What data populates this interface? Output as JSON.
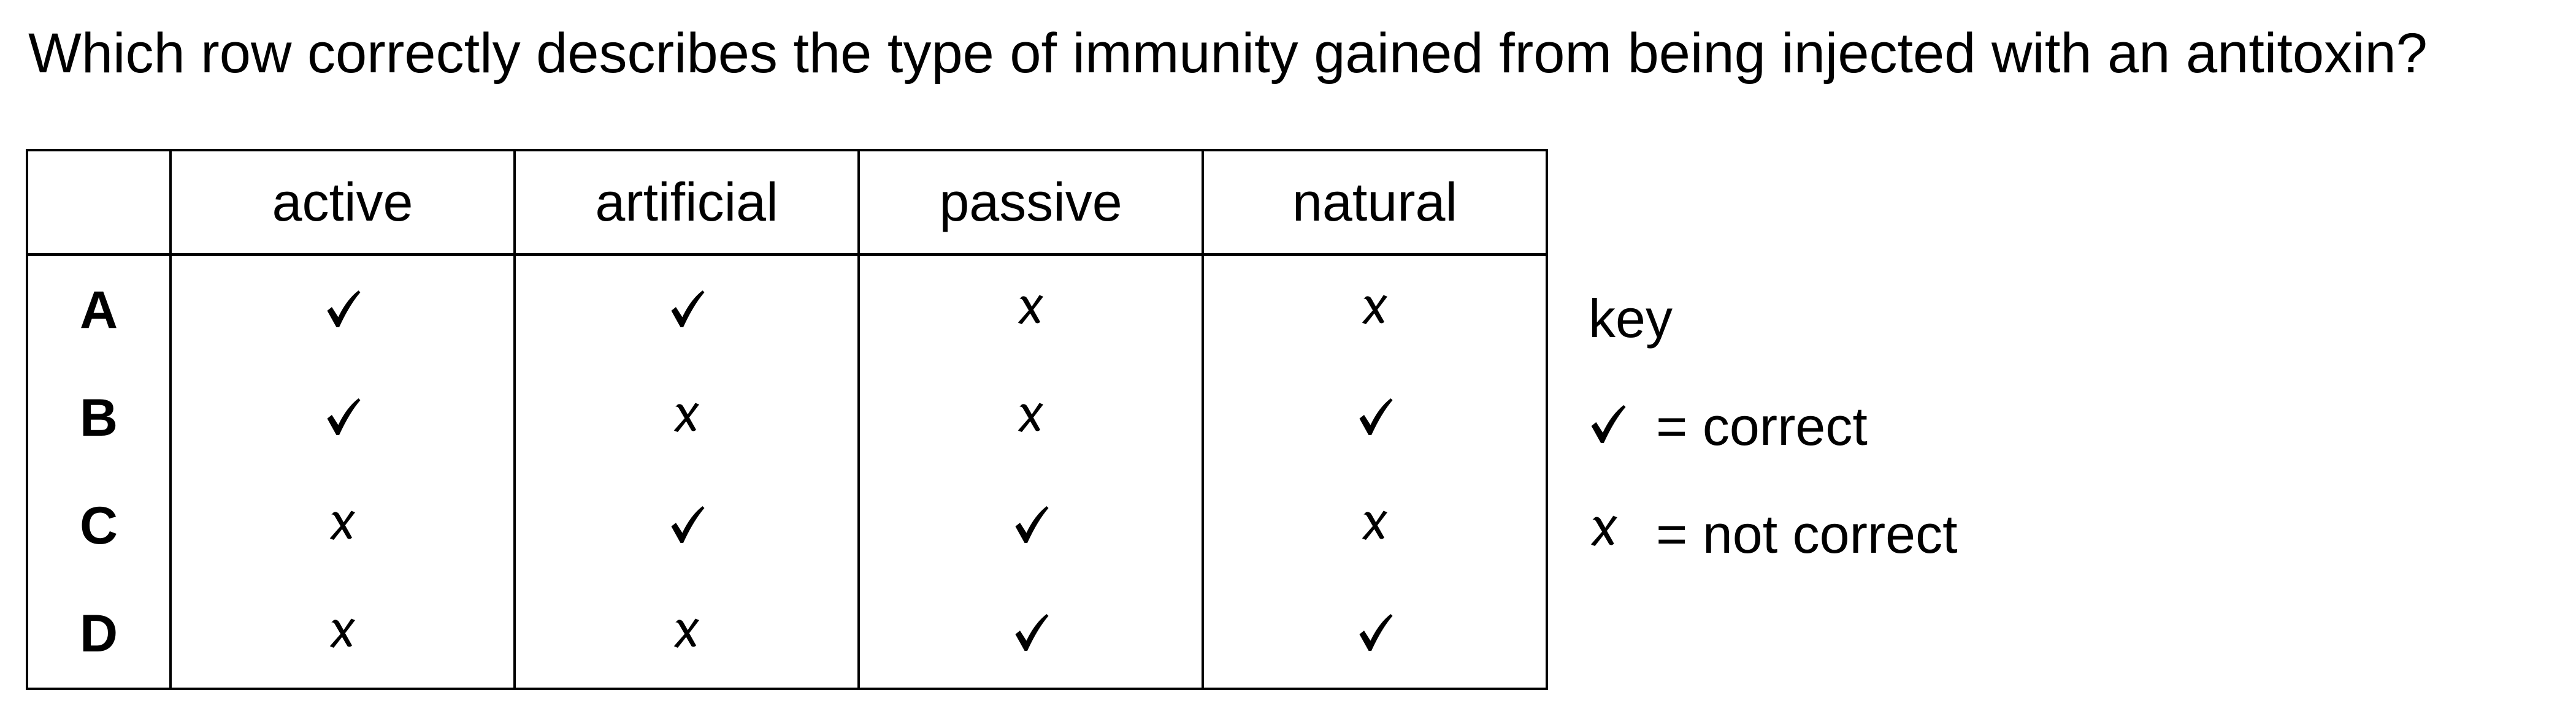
{
  "question": {
    "text": "Which row correctly describes the type of immunity gained from being injected with an antitoxin?"
  },
  "table": {
    "headers": [
      "",
      "active",
      "artificial",
      "passive",
      "natural"
    ],
    "rows": [
      {
        "label": "A",
        "marks": [
          "tick",
          "tick",
          "cross",
          "cross"
        ]
      },
      {
        "label": "B",
        "marks": [
          "tick",
          "cross",
          "cross",
          "tick"
        ]
      },
      {
        "label": "C",
        "marks": [
          "cross",
          "tick",
          "tick",
          "cross"
        ]
      },
      {
        "label": "D",
        "marks": [
          "cross",
          "cross",
          "tick",
          "tick"
        ]
      }
    ]
  },
  "key": {
    "title": "key",
    "correct_label": "= correct",
    "not_correct_label": "= not correct",
    "correct_icon": "tick-icon",
    "not_correct_icon": "cross-icon"
  }
}
